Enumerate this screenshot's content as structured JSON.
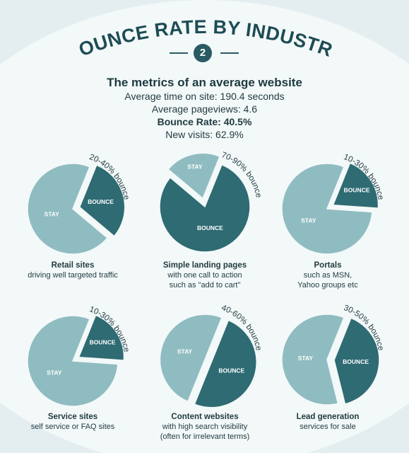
{
  "title": "BOUNCE RATE BY INDUSTRY",
  "badge": "2",
  "metrics": {
    "heading": "The metrics of an average website",
    "time_on_site": "Average time on site: 190.4 seconds",
    "pageviews": "Average pageviews: 4.6",
    "bounce_rate": "Bounce Rate: 40.5%",
    "new_visits": "New visits: 62.9%"
  },
  "colors": {
    "bounce": "#2e6b73",
    "stay": "#8fbcc1",
    "background": "#e4eef0",
    "text": "#1f3a40"
  },
  "chart_data": [
    {
      "type": "pie",
      "title": "Retail sites",
      "subtitle": [
        "driving well targeted traffic"
      ],
      "range_label": "20-40% bounce",
      "labels": [
        "BOUNCE",
        "STAY"
      ],
      "values": [
        30,
        70
      ],
      "exploded": "BOUNCE"
    },
    {
      "type": "pie",
      "title": "Simple landing pages",
      "subtitle": [
        "with one call to action",
        "such as \"add to cart\""
      ],
      "range_label": "70-90% bounce",
      "labels": [
        "BOUNCE",
        "STAY"
      ],
      "values": [
        80,
        20
      ],
      "exploded": "STAY"
    },
    {
      "type": "pie",
      "title": "Portals",
      "subtitle": [
        "such as MSN,",
        "Yahoo groups etc"
      ],
      "range_label": "10-30% bounce",
      "labels": [
        "BOUNCE",
        "STAY"
      ],
      "values": [
        20,
        80
      ],
      "exploded": "BOUNCE"
    },
    {
      "type": "pie",
      "title": "Service sites",
      "subtitle": [
        "self service or FAQ sites"
      ],
      "range_label": "10-30% bounce",
      "labels": [
        "BOUNCE",
        "STAY"
      ],
      "values": [
        20,
        80
      ],
      "exploded": "BOUNCE"
    },
    {
      "type": "pie",
      "title": "Content websites",
      "subtitle": [
        "with high search visibility",
        "(often for irrelevant terms)"
      ],
      "range_label": "40-60% bounce",
      "labels": [
        "BOUNCE",
        "STAY"
      ],
      "values": [
        50,
        50
      ],
      "exploded": "BOUNCE"
    },
    {
      "type": "pie",
      "title": "Lead generation",
      "subtitle": [
        "services for sale"
      ],
      "range_label": "30-50% bounce",
      "labels": [
        "BOUNCE",
        "STAY"
      ],
      "values": [
        40,
        60
      ],
      "exploded": "BOUNCE"
    }
  ]
}
